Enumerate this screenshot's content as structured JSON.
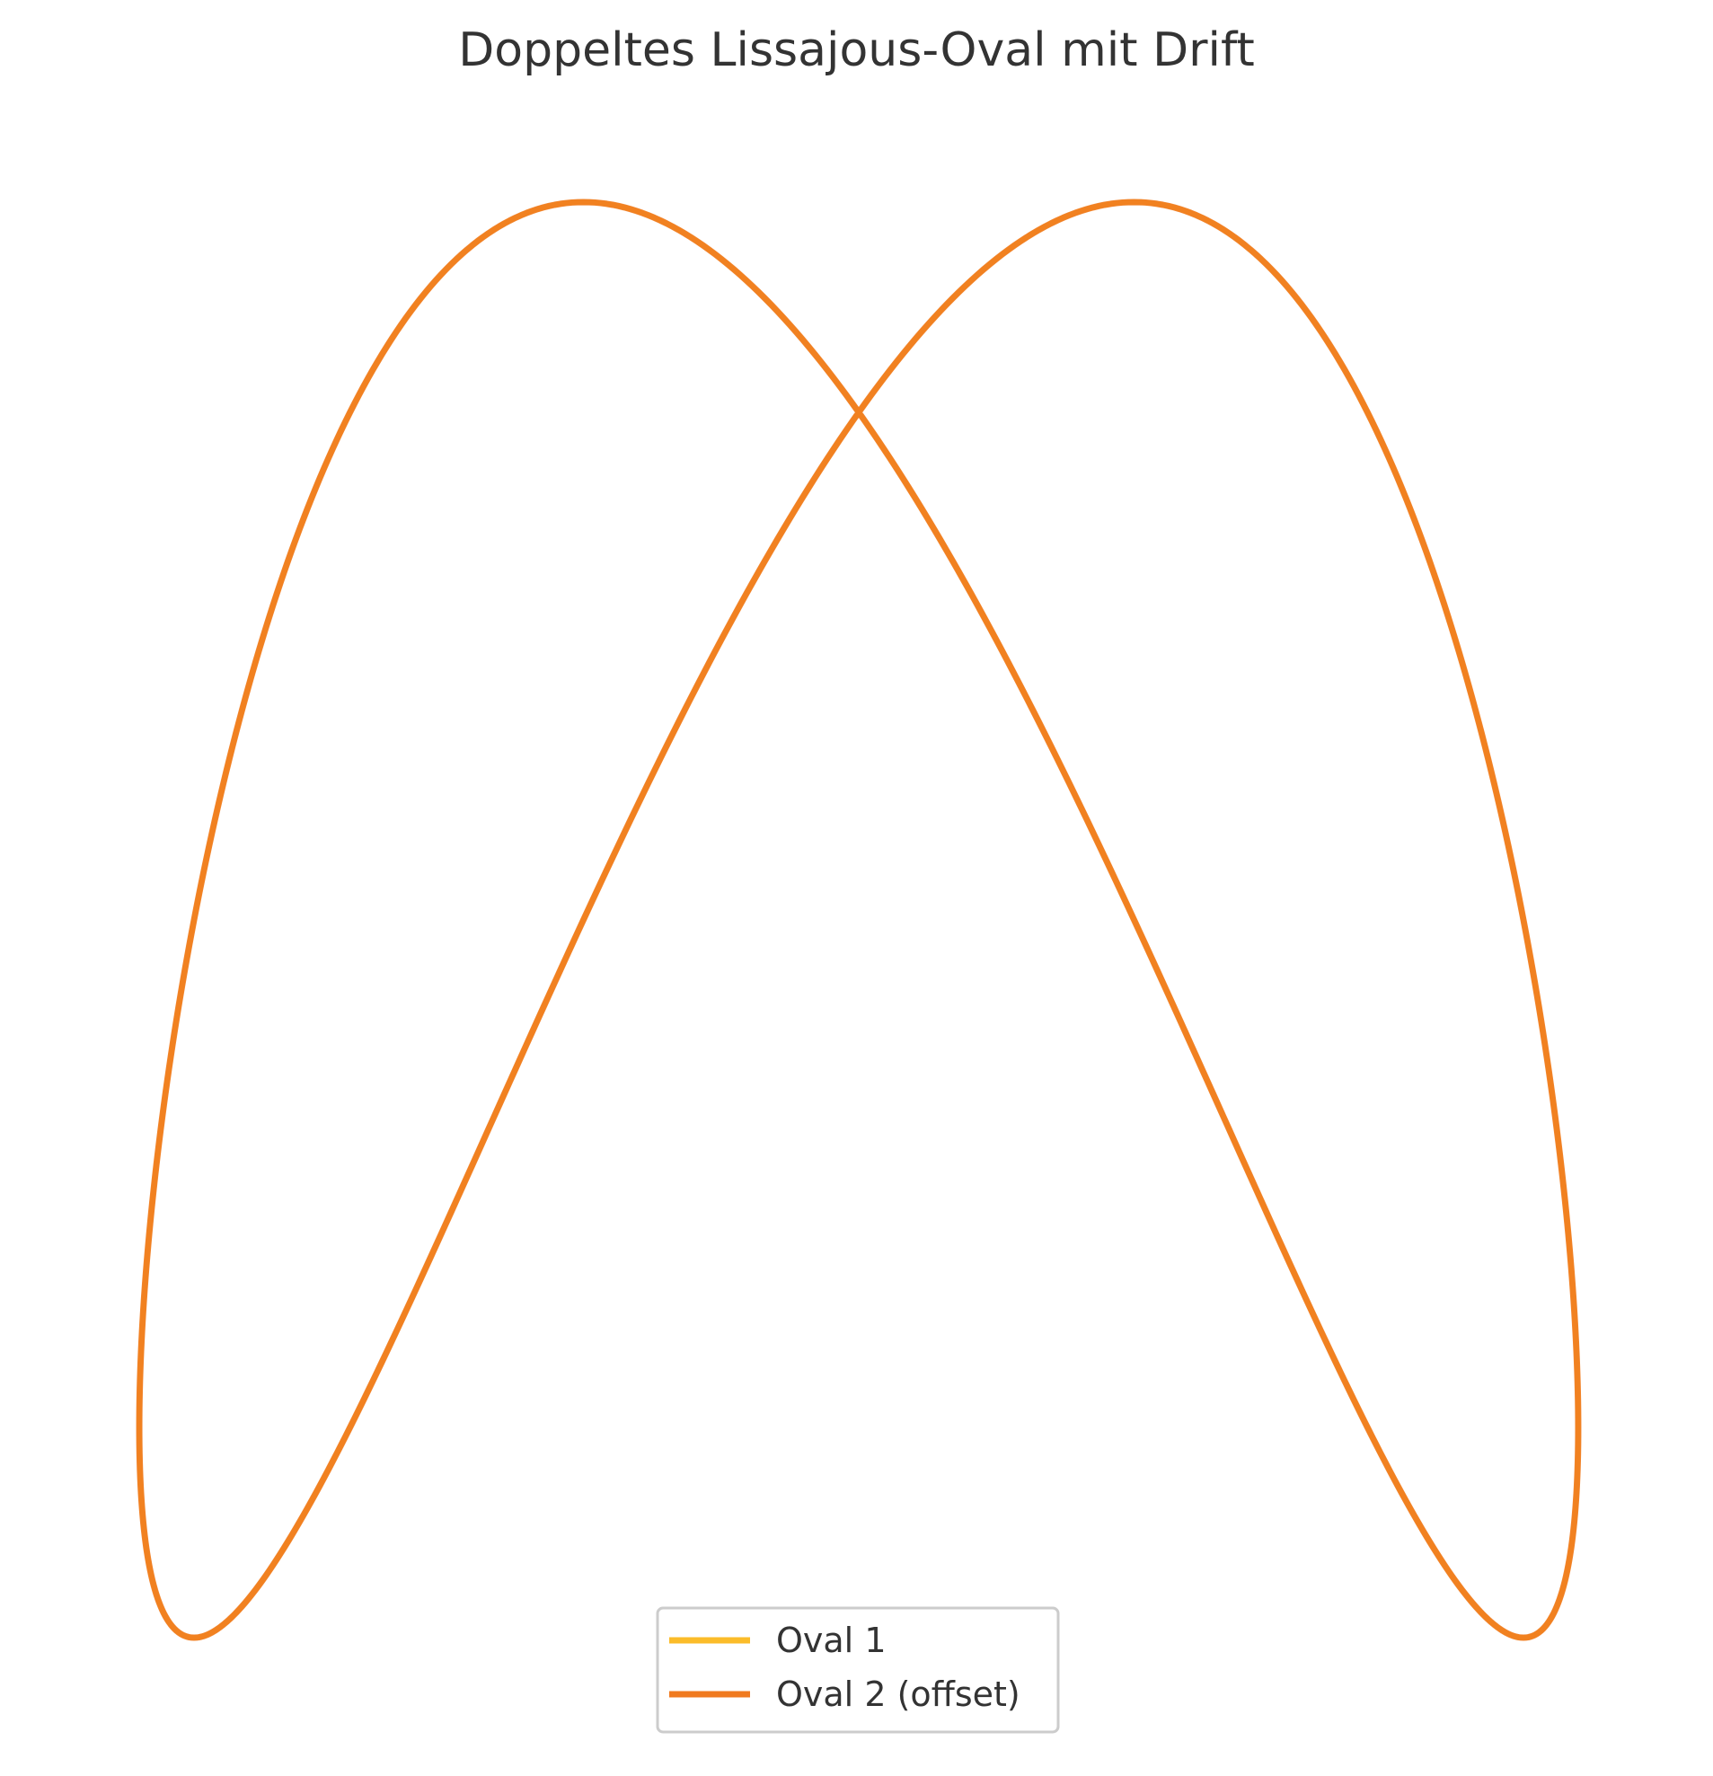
{
  "chart_data": {
    "type": "line",
    "title": "Doppeltes Lissajous-Oval mit Drift",
    "xlabel": "",
    "ylabel": "",
    "axes_visible": false,
    "grid": false,
    "legend_placement": "lower center",
    "series": [
      {
        "name": "Oval 1",
        "color": "#fbbc2a",
        "equation": "x = sin(t), y = sin(2t + pi/4), t in [0, 2pi]"
      },
      {
        "name": "Oval 2 (offset)",
        "color": "#f07a1f",
        "equation": "x = sin(t), y = sin(2t + pi/4), t in [0, 2pi]"
      }
    ],
    "xlim": [
      -1.05,
      1.05
    ],
    "ylim": [
      -1.05,
      1.05
    ]
  }
}
